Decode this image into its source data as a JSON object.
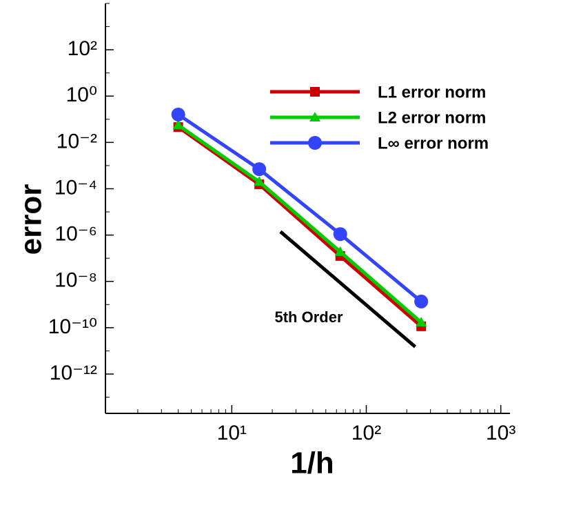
{
  "chart_data": {
    "type": "line",
    "xlabel": "1/h",
    "ylabel": "error",
    "x": [
      4,
      16,
      64,
      256
    ],
    "series": [
      {
        "name": "L1 error norm",
        "color": "#cc0000",
        "marker": "square",
        "values": [
          0.046,
          0.000155,
          1.25e-07,
          1.15e-10
        ]
      },
      {
        "name": "L2 error norm",
        "color": "#00cc00",
        "marker": "triangle",
        "values": [
          0.056,
          0.0002,
          1.9e-07,
          1.7e-10
        ]
      },
      {
        "name": "L∞ error norm",
        "color": "#3344ff",
        "marker": "circle",
        "values": [
          0.16,
          0.0007,
          1.1e-06,
          1.35e-09
        ]
      }
    ],
    "reference": {
      "color": "#000000",
      "x": [
        23,
        231
      ],
      "y": [
        1.4e-06,
        1.5e-11
      ]
    },
    "annotation": "5th Order",
    "xscale": "log",
    "yscale": "log",
    "xlim": [
      1.15,
      1170
    ],
    "ylim": [
      2e-14,
      10000
    ],
    "xticks": [
      {
        "value": 10,
        "label": "10¹"
      },
      {
        "value": 100,
        "label": "10²"
      },
      {
        "value": 1000,
        "label": "10³"
      }
    ],
    "yticks": [
      {
        "value": 1e-12,
        "label": "10⁻¹²"
      },
      {
        "value": 1e-10,
        "label": "10⁻¹⁰"
      },
      {
        "value": 1e-08,
        "label": "10⁻⁸"
      },
      {
        "value": 1e-06,
        "label": "10⁻⁶"
      },
      {
        "value": 0.0001,
        "label": "10⁻⁴"
      },
      {
        "value": 0.01,
        "label": "10⁻²"
      },
      {
        "value": 1,
        "label": "10⁰"
      },
      {
        "value": 100,
        "label": "10²"
      }
    ],
    "legend": "upper right",
    "grid": false
  }
}
